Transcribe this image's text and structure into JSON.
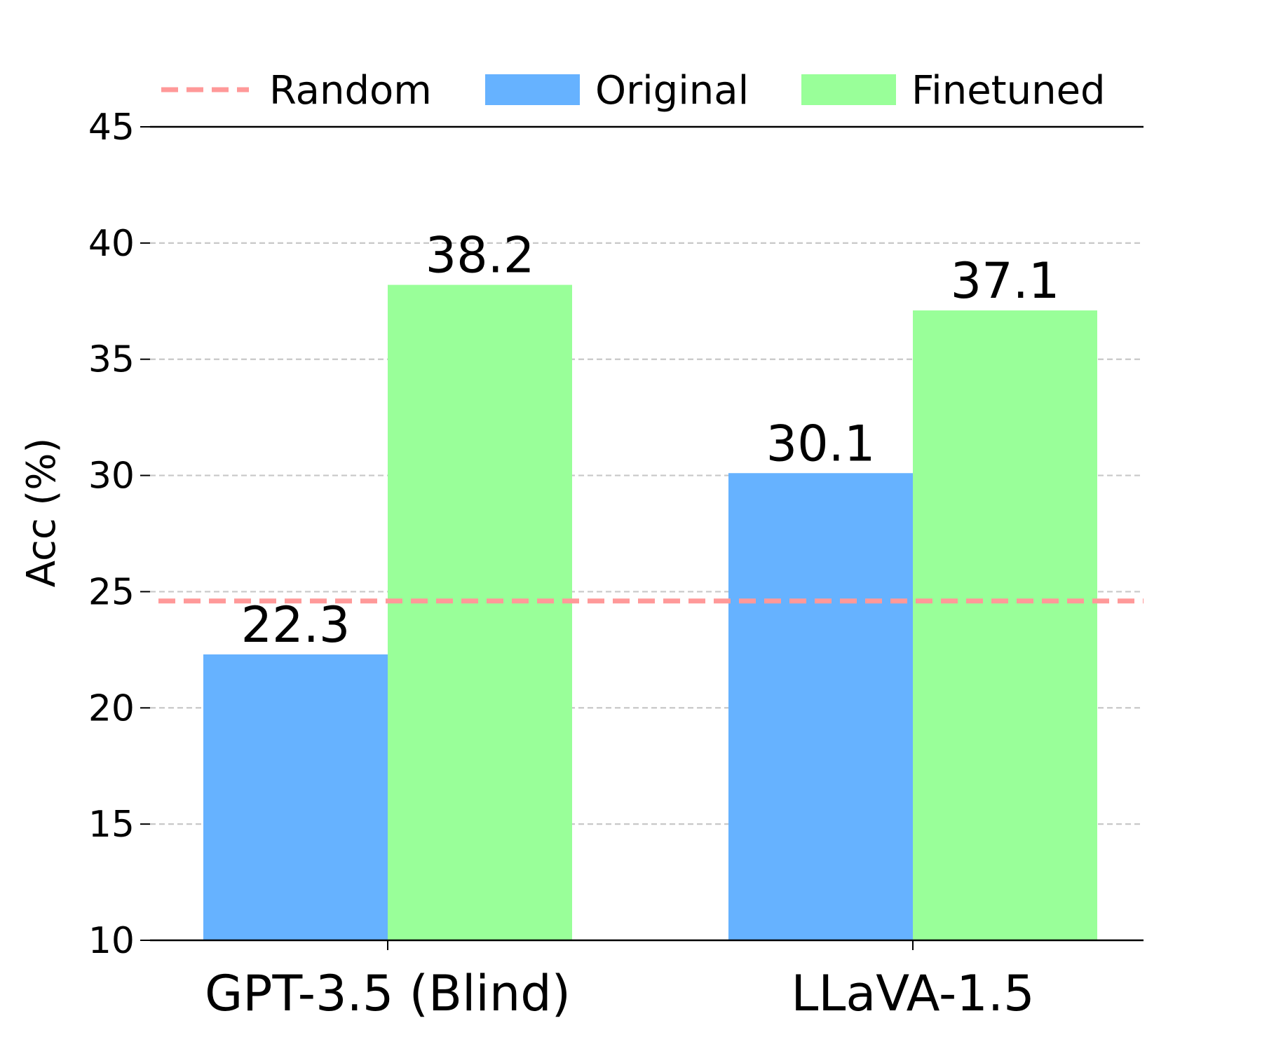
{
  "chart_data": {
    "type": "bar",
    "categories": [
      "GPT-3.5 (Blind)",
      "LLaVA-1.5"
    ],
    "series": [
      {
        "name": "Original",
        "values": [
          22.3,
          30.1
        ],
        "color": "#66b2ff"
      },
      {
        "name": "Finetuned",
        "values": [
          38.2,
          37.1
        ],
        "color": "#99ff99"
      }
    ],
    "reference_line": {
      "name": "Random",
      "value": 24.6,
      "color": "#ff9999",
      "style": "dashed"
    },
    "data_labels": [
      [
        "22.3",
        "30.1"
      ],
      [
        "38.2",
        "37.1"
      ]
    ],
    "ylabel": "Acc (%)",
    "xlabel": "",
    "title": "",
    "ylim": [
      10,
      45
    ],
    "yticks": [
      10,
      15,
      20,
      25,
      30,
      35,
      40,
      45
    ],
    "grid": "horizontal dashed",
    "legend_position": "top"
  }
}
